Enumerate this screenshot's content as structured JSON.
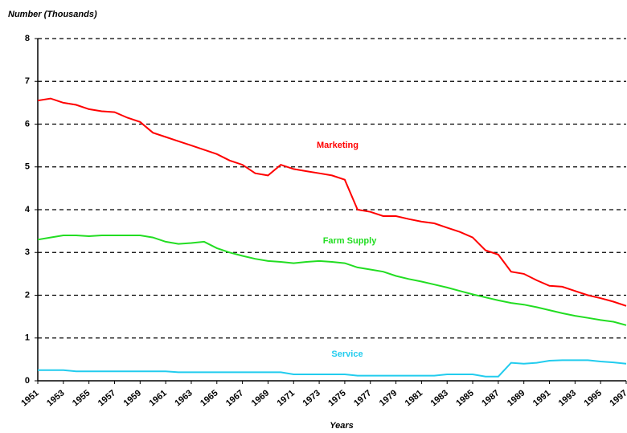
{
  "chart_data": {
    "type": "line",
    "title": "Number (Thousands)",
    "x_label": "Years",
    "x": [
      1951,
      1952,
      1953,
      1954,
      1955,
      1956,
      1957,
      1958,
      1959,
      1960,
      1961,
      1962,
      1963,
      1964,
      1965,
      1966,
      1967,
      1968,
      1969,
      1970,
      1971,
      1972,
      1973,
      1974,
      1975,
      1976,
      1977,
      1978,
      1979,
      1980,
      1981,
      1982,
      1983,
      1984,
      1985,
      1986,
      1987,
      1988,
      1989,
      1990,
      1991,
      1992,
      1993,
      1994,
      1995,
      1996,
      1997
    ],
    "series": [
      {
        "name": "Marketing",
        "color": "#ff0000",
        "values": [
          6.55,
          6.6,
          6.5,
          6.45,
          6.35,
          6.3,
          6.28,
          6.15,
          6.05,
          5.8,
          5.7,
          5.6,
          5.5,
          5.4,
          5.3,
          5.15,
          5.05,
          4.85,
          4.8,
          5.05,
          4.95,
          4.9,
          4.85,
          4.8,
          4.7,
          4.0,
          3.95,
          3.85,
          3.85,
          3.78,
          3.72,
          3.68,
          3.58,
          3.48,
          3.35,
          3.05,
          2.95,
          2.55,
          2.5,
          2.35,
          2.22,
          2.2,
          2.1,
          2.0,
          1.93,
          1.85,
          1.75
        ]
      },
      {
        "name": "Farm Supply",
        "color": "#22dd22",
        "values": [
          3.3,
          3.35,
          3.4,
          3.4,
          3.38,
          3.4,
          3.4,
          3.4,
          3.4,
          3.35,
          3.25,
          3.2,
          3.22,
          3.25,
          3.1,
          3.0,
          2.92,
          2.85,
          2.8,
          2.78,
          2.75,
          2.78,
          2.8,
          2.78,
          2.75,
          2.65,
          2.6,
          2.55,
          2.45,
          2.38,
          2.32,
          2.25,
          2.18,
          2.1,
          2.02,
          1.95,
          1.88,
          1.82,
          1.78,
          1.72,
          1.65,
          1.58,
          1.52,
          1.47,
          1.42,
          1.38,
          1.3
        ]
      },
      {
        "name": "Service",
        "color": "#22ccee",
        "values": [
          0.25,
          0.25,
          0.25,
          0.22,
          0.22,
          0.22,
          0.22,
          0.22,
          0.22,
          0.22,
          0.22,
          0.2,
          0.2,
          0.2,
          0.2,
          0.2,
          0.2,
          0.2,
          0.2,
          0.2,
          0.15,
          0.15,
          0.15,
          0.15,
          0.15,
          0.12,
          0.12,
          0.12,
          0.12,
          0.12,
          0.12,
          0.12,
          0.15,
          0.15,
          0.15,
          0.1,
          0.1,
          0.42,
          0.4,
          0.42,
          0.47,
          0.48,
          0.48,
          0.48,
          0.45,
          0.43,
          0.4
        ]
      }
    ],
    "xlim": [
      1951,
      1997
    ],
    "xticks": [
      1951,
      1953,
      1955,
      1957,
      1959,
      1961,
      1963,
      1965,
      1967,
      1969,
      1971,
      1973,
      1975,
      1977,
      1979,
      1981,
      1983,
      1985,
      1987,
      1989,
      1991,
      1993,
      1995,
      1997
    ],
    "ylim": [
      0,
      8
    ],
    "yticks": [
      0,
      1,
      2,
      3,
      4,
      5,
      6,
      7,
      8
    ],
    "grid": true
  }
}
